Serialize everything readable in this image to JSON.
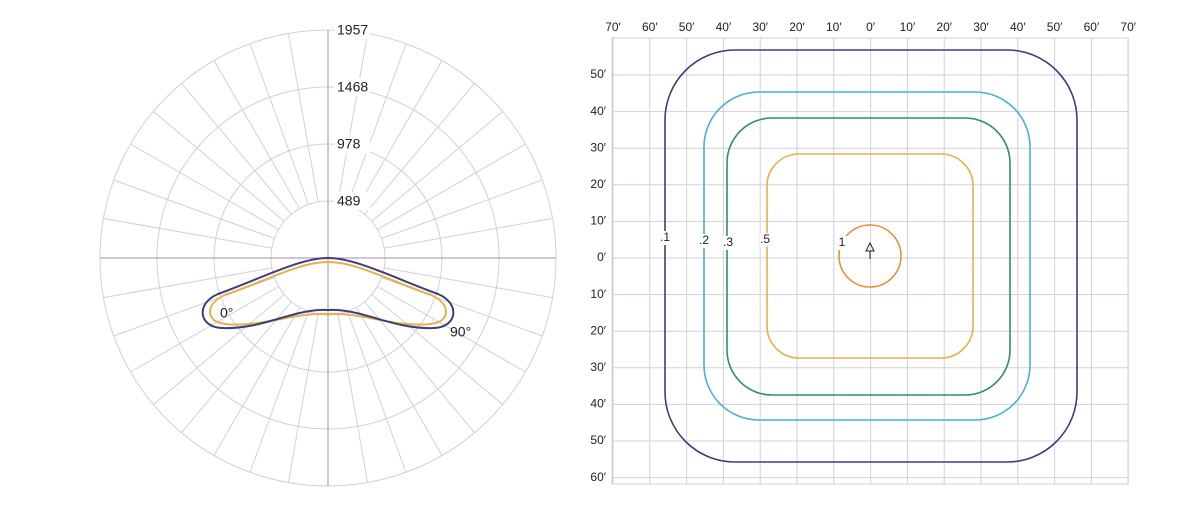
{
  "polar": {
    "ring_labels": [
      "1957",
      "1468",
      "978",
      "489"
    ],
    "angle_labels": [
      "0°",
      "90°"
    ]
  },
  "isofootcandle": {
    "x_labels": [
      "70′",
      "60′",
      "50′",
      "40′",
      "30′",
      "20′",
      "10′",
      "0′",
      "10′",
      "20′",
      "30′",
      "40′",
      "50′",
      "60′",
      "70′"
    ],
    "y_labels": [
      "50′",
      "40′",
      "30′",
      "20′",
      "10′",
      "0′",
      "10′",
      "20′",
      "30′",
      "40′",
      "50′",
      "60′"
    ],
    "contour_labels": [
      ".1",
      ".2",
      ".3",
      ".5",
      "1"
    ]
  }
}
